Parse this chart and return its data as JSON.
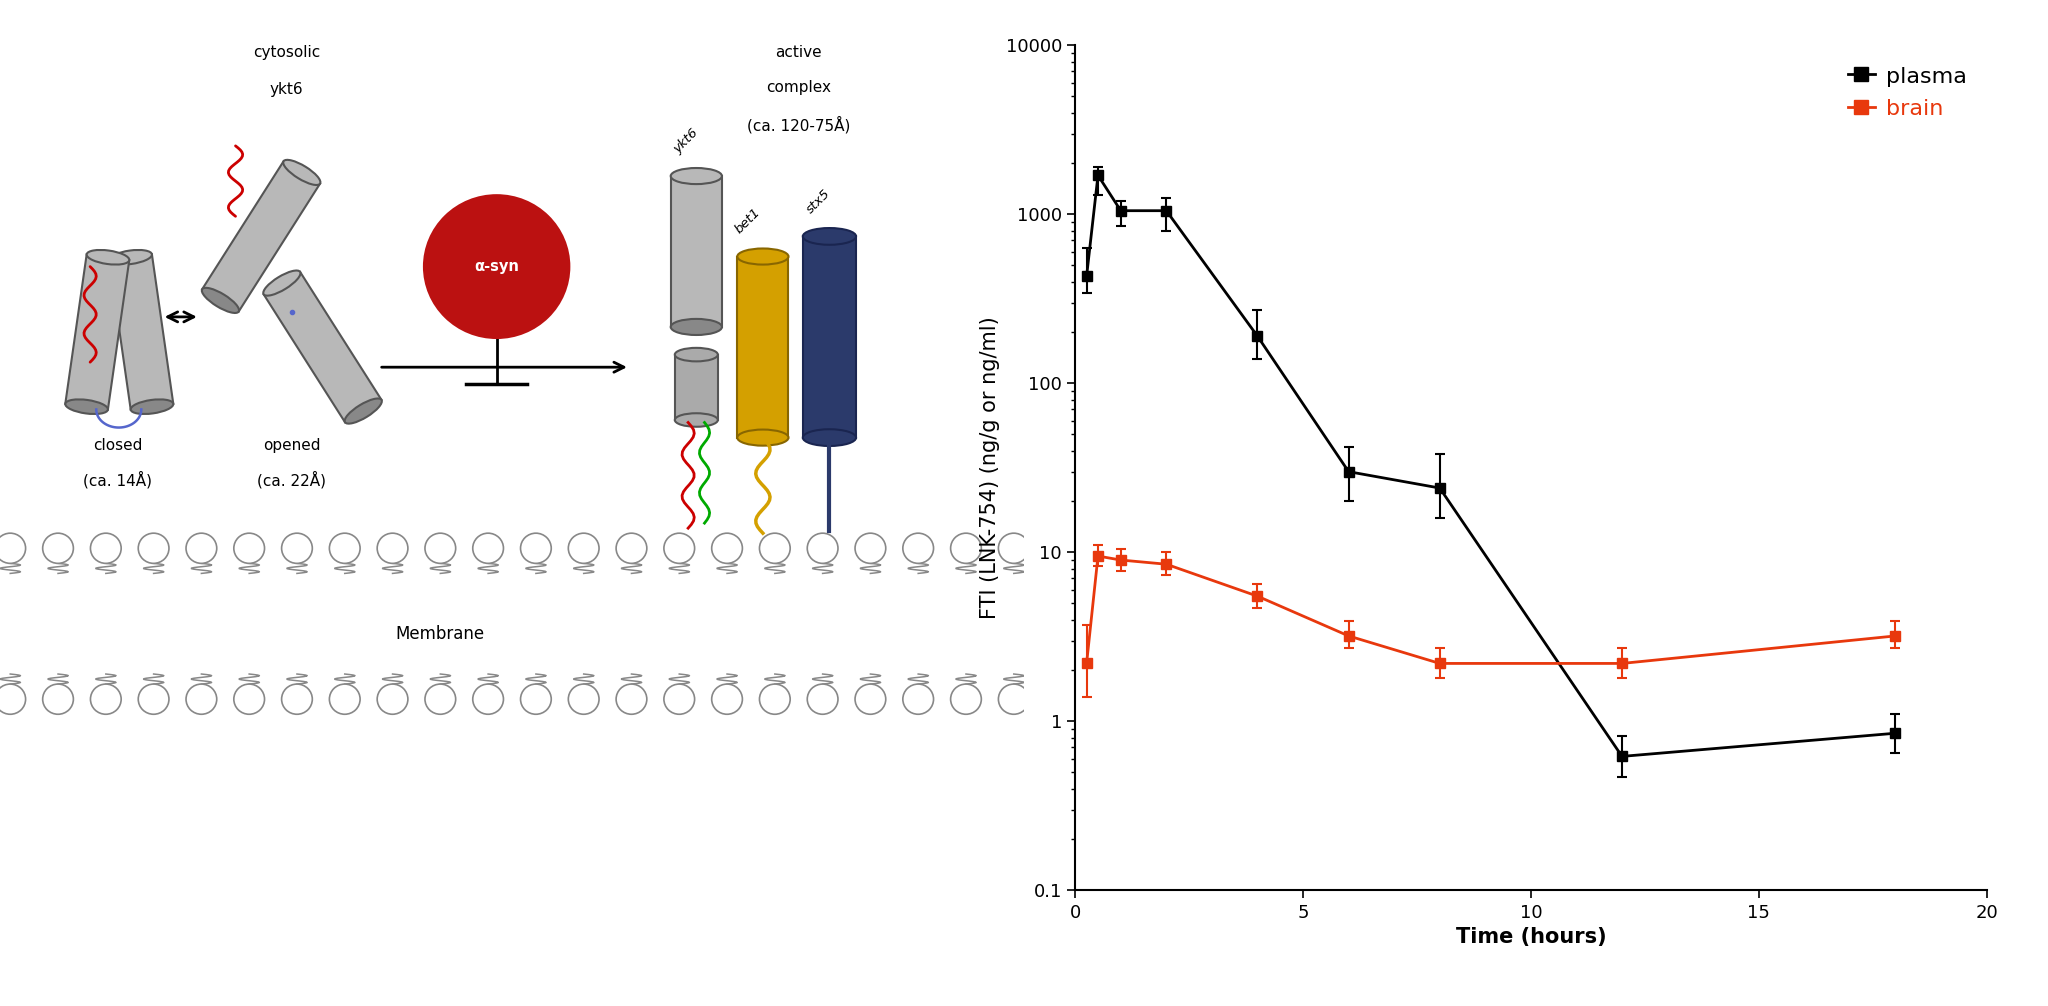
{
  "plasma_time": [
    0.25,
    0.5,
    1,
    2,
    4,
    6,
    8,
    12,
    18
  ],
  "plasma_values": [
    430,
    1700,
    1050,
    1050,
    190,
    30,
    24,
    0.62,
    0.85
  ],
  "plasma_yerr_lo": [
    90,
    400,
    200,
    250,
    50,
    10,
    8,
    0.15,
    0.2
  ],
  "plasma_yerr_hi": [
    200,
    200,
    150,
    200,
    80,
    12,
    14,
    0.2,
    0.25
  ],
  "brain_time": [
    0.25,
    0.5,
    1,
    2,
    4,
    6,
    8,
    12,
    18
  ],
  "brain_values": [
    2.2,
    9.5,
    9.0,
    8.5,
    5.5,
    3.2,
    2.2,
    2.2,
    3.2
  ],
  "brain_yerr_lo": [
    0.8,
    1.2,
    1.2,
    1.2,
    0.8,
    0.5,
    0.4,
    0.4,
    0.5
  ],
  "brain_yerr_hi": [
    1.5,
    1.5,
    1.5,
    1.5,
    1.0,
    0.7,
    0.5,
    0.5,
    0.7
  ],
  "plasma_color": "#000000",
  "brain_color": "#e8380d",
  "ylabel": "FTI (LNK-754) (ng/g or ng/ml)",
  "xlabel": "Time (hours)",
  "ylim_lo": 0.1,
  "ylim_hi": 10000,
  "xlim_lo": 0,
  "xlim_hi": 20,
  "xticks": [
    0,
    5,
    10,
    15,
    20
  ],
  "yticks": [
    0.1,
    1,
    10,
    100,
    1000,
    10000
  ],
  "legend_plasma": "plasma",
  "legend_brain": "brain",
  "label_fontsize": 15,
  "tick_fontsize": 13,
  "legend_fontsize": 16,
  "bg_color": "#ffffff",
  "cyl_color": "#b8b8b8",
  "cyl_edge": "#555555",
  "mem_color": "#888888",
  "alpha_syn_color": "#bb1111",
  "bet1_color": "#d4a000",
  "stx5_color": "#2b3a6b",
  "red_squiggle": "#cc0000",
  "green_tail": "#00aa00"
}
